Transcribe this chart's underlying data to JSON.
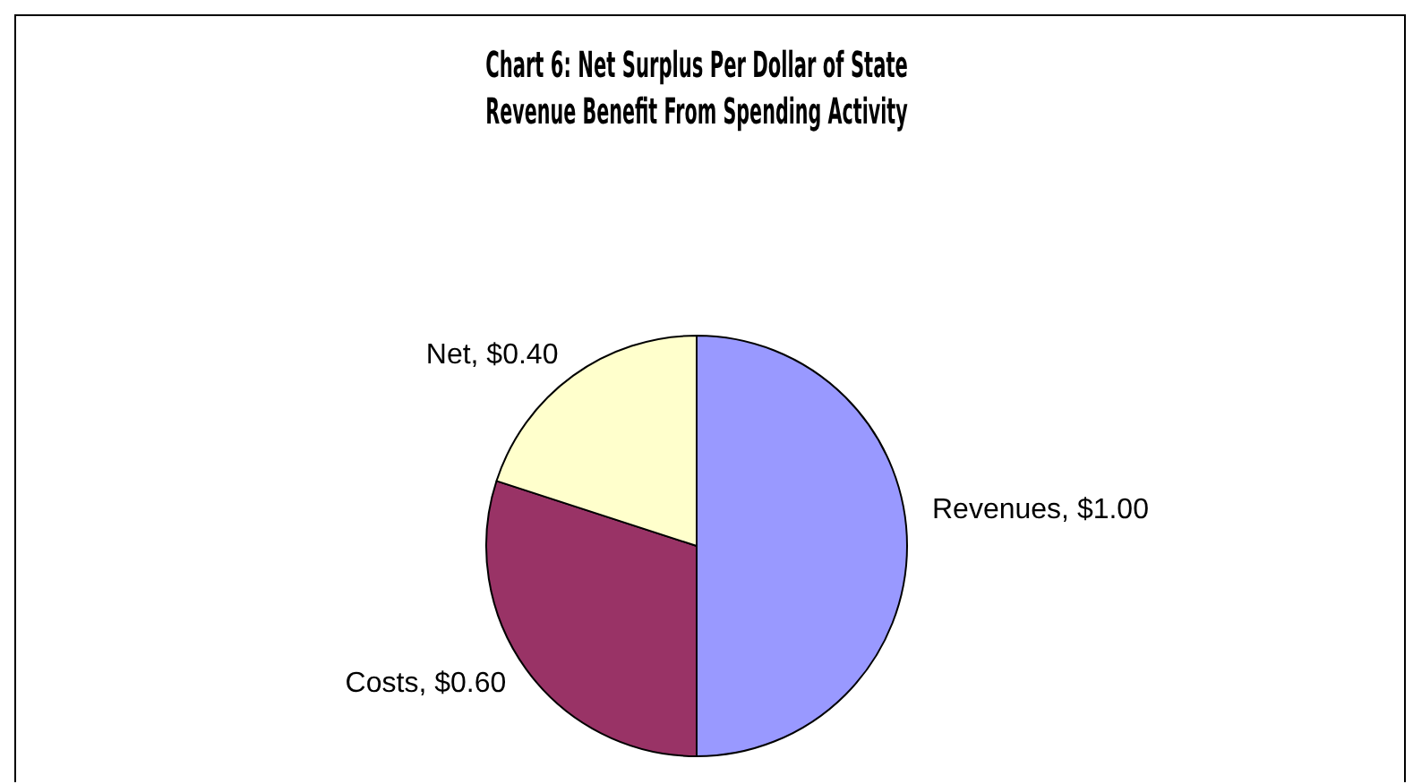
{
  "chart_data": {
    "type": "pie",
    "title": "Chart 6: Net Surplus Per Dollar of State Revenue Benefit From Spending Activity",
    "categories": [
      "Revenues",
      "Costs",
      "Net"
    ],
    "values": [
      1.0,
      0.6,
      0.4
    ],
    "value_labels": [
      "$1.00",
      "$0.60",
      "$0.40"
    ],
    "colors": [
      "#9999ff",
      "#993366",
      "#ffffcc"
    ],
    "legend": false
  }
}
